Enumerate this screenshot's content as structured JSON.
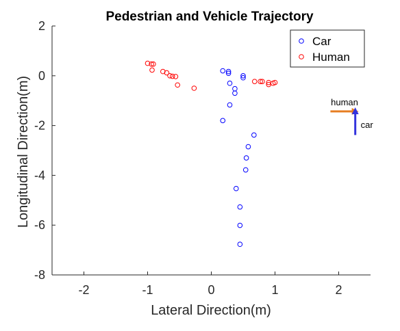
{
  "chart_data": {
    "type": "scatter",
    "title": "Pedestrian and Vehicle Trajectory",
    "xlabel": "Lateral Direction(m)",
    "ylabel": "Longitudinal Direction(m)",
    "xlim": [
      -2.5,
      2.5
    ],
    "ylim": [
      -8,
      2
    ],
    "xticks": [
      -2,
      -1,
      0,
      1,
      2
    ],
    "yticks": [
      -8,
      -6,
      -4,
      -2,
      0,
      2
    ],
    "grid": false,
    "legend": "top-right",
    "series": [
      {
        "name": "Car",
        "color": "#0000ff",
        "marker": "circle-open",
        "points": [
          [
            0.18,
            0.2
          ],
          [
            0.27,
            0.17
          ],
          [
            0.27,
            0.1
          ],
          [
            0.5,
            0.0
          ],
          [
            0.5,
            -0.08
          ],
          [
            0.29,
            -0.3
          ],
          [
            0.37,
            -0.52
          ],
          [
            0.37,
            -0.7
          ],
          [
            0.29,
            -1.17
          ],
          [
            0.18,
            -1.8
          ],
          [
            0.67,
            -2.38
          ],
          [
            0.58,
            -2.85
          ],
          [
            0.55,
            -3.3
          ],
          [
            0.54,
            -3.78
          ],
          [
            0.39,
            -4.53
          ],
          [
            0.45,
            -5.27
          ],
          [
            0.45,
            -6.01
          ],
          [
            0.45,
            -6.77
          ]
        ]
      },
      {
        "name": "Human",
        "color": "#ff0000",
        "marker": "circle-open",
        "points": [
          [
            -1.0,
            0.5
          ],
          [
            -0.94,
            0.47
          ],
          [
            -0.91,
            0.47
          ],
          [
            -0.93,
            0.23
          ],
          [
            -0.76,
            0.17
          ],
          [
            -0.7,
            0.12
          ],
          [
            -0.65,
            0.0
          ],
          [
            -0.61,
            -0.02
          ],
          [
            -0.56,
            -0.03
          ],
          [
            -0.53,
            -0.37
          ],
          [
            -0.27,
            -0.5
          ],
          [
            0.68,
            -0.23
          ],
          [
            0.77,
            -0.23
          ],
          [
            0.8,
            -0.23
          ],
          [
            0.9,
            -0.27
          ],
          [
            0.9,
            -0.35
          ],
          [
            0.97,
            -0.3
          ],
          [
            1.0,
            -0.27
          ]
        ]
      }
    ],
    "annotations": [
      {
        "text": "human",
        "arrow_color": "#e67e22",
        "direction": "right",
        "from": [
          1.87,
          -1.43
        ],
        "to": [
          2.27,
          -1.43
        ]
      },
      {
        "text": "car",
        "arrow_color": "#3333dd",
        "direction": "up",
        "from": [
          2.26,
          -2.38
        ],
        "to": [
          2.26,
          -1.38
        ]
      }
    ]
  }
}
